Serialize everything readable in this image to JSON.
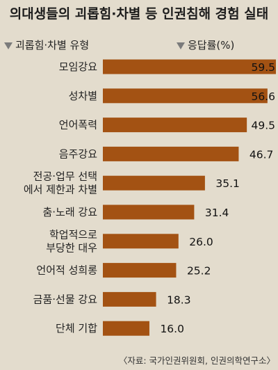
{
  "title": "의대생들의 괴롭힘·차별 등 인권침해 경험 실태",
  "header": {
    "category_label": "괴롭힘·차별 유형",
    "value_label": "응답률(%)"
  },
  "source": "〈자료: 국가인권위원회, 인권의학연구소〉",
  "colors": {
    "bar": "#a35213",
    "background": "#e3dccd"
  },
  "chart_data": {
    "type": "bar",
    "orientation": "horizontal",
    "title": "의대생들의 괴롭힘·차별 등 인권침해 경험 실태",
    "xlabel": "괴롭힘·차별 유형",
    "ylabel": "응답률(%)",
    "xlim": [
      0,
      59.5
    ],
    "grid": false,
    "categories": [
      [
        "모임강요"
      ],
      [
        "성차별"
      ],
      [
        "언어폭력"
      ],
      [
        "음주강요"
      ],
      [
        "전공·업무 선택",
        "에서 제한과 차별"
      ],
      [
        "춤·노래 강요"
      ],
      [
        "학업적으로",
        "부당한 대우"
      ],
      [
        "언어적 성희롱"
      ],
      [
        "금품·선물 강요"
      ],
      [
        "단체 기합"
      ]
    ],
    "values": [
      59.5,
      56.6,
      49.5,
      46.7,
      35.1,
      31.4,
      26.0,
      25.2,
      18.3,
      16.0
    ],
    "value_labels": [
      "59.5",
      "56.6",
      "49.5",
      "46.7",
      "35.1",
      "31.4",
      "26.0",
      "25.2",
      "18.3",
      "16.0"
    ]
  }
}
